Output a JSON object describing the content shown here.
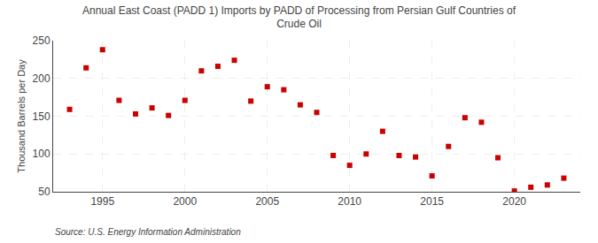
{
  "chart_data": {
    "type": "scatter",
    "title": "Annual East Coast (PADD 1) Imports by PADD of Processing from Persian Gulf Countries of\nCrude Oil",
    "y_label": "Thousand Barrels per Day",
    "annotations": [
      "Source: U.S. Energy Information Administration"
    ],
    "x": [
      1993,
      1994,
      1995,
      1996,
      1997,
      1998,
      1999,
      2000,
      2001,
      2002,
      2003,
      2004,
      2005,
      2006,
      2007,
      2008,
      2009,
      2010,
      2011,
      2012,
      2013,
      2014,
      2015,
      2016,
      2017,
      2018,
      2019,
      2020,
      2021,
      2022,
      2023
    ],
    "values": [
      159,
      214,
      238,
      171,
      153,
      161,
      151,
      171,
      210,
      216,
      224,
      170,
      189,
      185,
      165,
      155,
      98,
      85,
      100,
      130,
      98,
      96,
      71,
      110,
      148,
      142,
      95,
      51,
      56,
      59,
      68
    ],
    "color": "#cc0000",
    "marker": "square",
    "xlim": [
      1992,
      2024
    ],
    "xticks": [
      1995,
      2000,
      2005,
      2010,
      2015,
      2020
    ],
    "ylim": [
      50,
      250
    ],
    "yticks": [
      50,
      100,
      150,
      200,
      250
    ],
    "grid": true
  }
}
